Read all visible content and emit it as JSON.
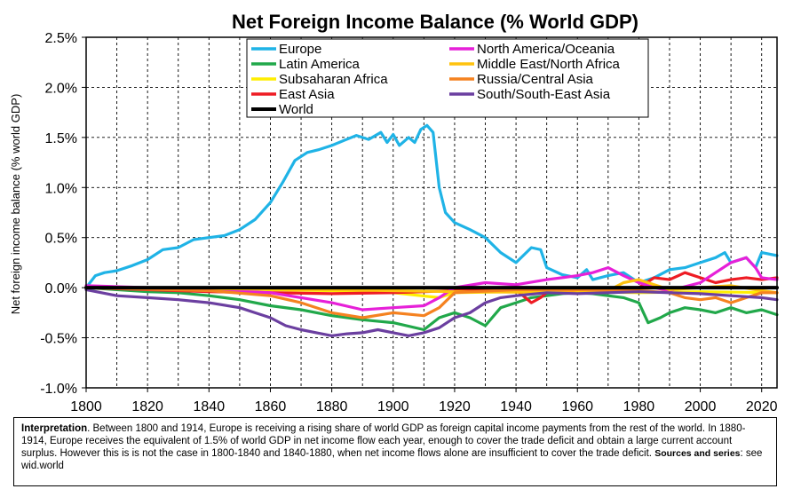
{
  "chart_data": {
    "type": "line",
    "title": "Net Foreign Income Balance (% World GDP)",
    "ylabel": "Net foreign income balance (% world GDP)",
    "xlabel": "",
    "xlim": [
      1800,
      2025
    ],
    "ylim": [
      -1.0,
      2.5
    ],
    "x_ticks": [
      "1800",
      "1820",
      "1840",
      "1860",
      "1880",
      "1900",
      "1920",
      "1940",
      "1960",
      "1980",
      "2000",
      "2020"
    ],
    "y_ticks": [
      "2.5%",
      "2.0%",
      "1.5%",
      "1.0%",
      "0.5%",
      "0.0%",
      "-0.5%",
      "-1.0%"
    ],
    "grid": true,
    "legend_position": "top-center",
    "series": [
      {
        "name": "Europe",
        "color": "#1fb3e6",
        "points": [
          [
            1800,
            0.0
          ],
          [
            1803,
            0.12
          ],
          [
            1806,
            0.15
          ],
          [
            1810,
            0.17
          ],
          [
            1815,
            0.22
          ],
          [
            1820,
            0.28
          ],
          [
            1825,
            0.38
          ],
          [
            1830,
            0.4
          ],
          [
            1835,
            0.48
          ],
          [
            1840,
            0.5
          ],
          [
            1845,
            0.52
          ],
          [
            1850,
            0.58
          ],
          [
            1855,
            0.68
          ],
          [
            1860,
            0.85
          ],
          [
            1864,
            1.05
          ],
          [
            1868,
            1.27
          ],
          [
            1872,
            1.35
          ],
          [
            1876,
            1.38
          ],
          [
            1880,
            1.42
          ],
          [
            1884,
            1.47
          ],
          [
            1888,
            1.52
          ],
          [
            1892,
            1.48
          ],
          [
            1896,
            1.55
          ],
          [
            1898,
            1.45
          ],
          [
            1900,
            1.53
          ],
          [
            1902,
            1.42
          ],
          [
            1905,
            1.5
          ],
          [
            1907,
            1.45
          ],
          [
            1909,
            1.58
          ],
          [
            1911,
            1.62
          ],
          [
            1913,
            1.55
          ],
          [
            1915,
            1.0
          ],
          [
            1917,
            0.75
          ],
          [
            1920,
            0.65
          ],
          [
            1925,
            0.58
          ],
          [
            1930,
            0.5
          ],
          [
            1935,
            0.35
          ],
          [
            1940,
            0.25
          ],
          [
            1945,
            0.4
          ],
          [
            1948,
            0.38
          ],
          [
            1950,
            0.2
          ],
          [
            1955,
            0.13
          ],
          [
            1960,
            0.1
          ],
          [
            1963,
            0.18
          ],
          [
            1965,
            0.08
          ],
          [
            1970,
            0.12
          ],
          [
            1975,
            0.15
          ],
          [
            1980,
            0.05
          ],
          [
            1985,
            0.1
          ],
          [
            1990,
            0.18
          ],
          [
            1995,
            0.2
          ],
          [
            2000,
            0.25
          ],
          [
            2005,
            0.3
          ],
          [
            2008,
            0.35
          ],
          [
            2010,
            0.25
          ],
          [
            2015,
            0.3
          ],
          [
            2018,
            0.2
          ],
          [
            2020,
            0.35
          ],
          [
            2025,
            0.32
          ]
        ]
      },
      {
        "name": "Latin America",
        "color": "#21a84a",
        "points": [
          [
            1800,
            0.0
          ],
          [
            1810,
            -0.02
          ],
          [
            1820,
            -0.04
          ],
          [
            1830,
            -0.05
          ],
          [
            1840,
            -0.08
          ],
          [
            1850,
            -0.12
          ],
          [
            1860,
            -0.18
          ],
          [
            1870,
            -0.22
          ],
          [
            1880,
            -0.28
          ],
          [
            1890,
            -0.32
          ],
          [
            1900,
            -0.35
          ],
          [
            1910,
            -0.42
          ],
          [
            1915,
            -0.3
          ],
          [
            1920,
            -0.25
          ],
          [
            1925,
            -0.3
          ],
          [
            1930,
            -0.38
          ],
          [
            1935,
            -0.2
          ],
          [
            1940,
            -0.15
          ],
          [
            1945,
            -0.1
          ],
          [
            1950,
            -0.08
          ],
          [
            1955,
            -0.06
          ],
          [
            1960,
            -0.05
          ],
          [
            1965,
            -0.06
          ],
          [
            1970,
            -0.08
          ],
          [
            1975,
            -0.1
          ],
          [
            1980,
            -0.15
          ],
          [
            1983,
            -0.35
          ],
          [
            1987,
            -0.3
          ],
          [
            1990,
            -0.25
          ],
          [
            1995,
            -0.2
          ],
          [
            2000,
            -0.22
          ],
          [
            2005,
            -0.25
          ],
          [
            2010,
            -0.2
          ],
          [
            2015,
            -0.25
          ],
          [
            2020,
            -0.22
          ],
          [
            2025,
            -0.27
          ]
        ]
      },
      {
        "name": "Subsaharan Africa",
        "color": "#ffee00",
        "points": [
          [
            1800,
            0.0
          ],
          [
            1840,
            -0.01
          ],
          [
            1880,
            -0.03
          ],
          [
            1900,
            -0.05
          ],
          [
            1915,
            -0.1
          ],
          [
            1920,
            -0.05
          ],
          [
            1940,
            -0.04
          ],
          [
            1960,
            -0.04
          ],
          [
            1980,
            -0.05
          ],
          [
            2000,
            -0.04
          ],
          [
            2025,
            -0.05
          ]
        ]
      },
      {
        "name": "East Asia",
        "color": "#ee1c24",
        "points": [
          [
            1800,
            0.0
          ],
          [
            1840,
            -0.04
          ],
          [
            1880,
            -0.06
          ],
          [
            1900,
            -0.05
          ],
          [
            1920,
            -0.03
          ],
          [
            1940,
            -0.02
          ],
          [
            1945,
            -0.15
          ],
          [
            1948,
            -0.1
          ],
          [
            1950,
            -0.05
          ],
          [
            1960,
            -0.02
          ],
          [
            1970,
            -0.01
          ],
          [
            1980,
            0.0
          ],
          [
            1985,
            0.1
          ],
          [
            1990,
            0.08
          ],
          [
            1995,
            0.15
          ],
          [
            2000,
            0.1
          ],
          [
            2005,
            0.05
          ],
          [
            2010,
            0.08
          ],
          [
            2015,
            0.1
          ],
          [
            2020,
            0.08
          ],
          [
            2025,
            0.1
          ]
        ]
      },
      {
        "name": "World",
        "color": "#000000",
        "points": [
          [
            1800,
            0.0
          ],
          [
            2025,
            0.0
          ]
        ]
      },
      {
        "name": "North America/Oceania",
        "color": "#e620d8",
        "points": [
          [
            1800,
            0.02
          ],
          [
            1820,
            0.0
          ],
          [
            1840,
            -0.02
          ],
          [
            1860,
            -0.05
          ],
          [
            1880,
            -0.15
          ],
          [
            1890,
            -0.22
          ],
          [
            1900,
            -0.2
          ],
          [
            1910,
            -0.18
          ],
          [
            1915,
            -0.1
          ],
          [
            1920,
            0.0
          ],
          [
            1930,
            0.05
          ],
          [
            1940,
            0.03
          ],
          [
            1950,
            0.08
          ],
          [
            1960,
            0.12
          ],
          [
            1965,
            0.15
          ],
          [
            1970,
            0.2
          ],
          [
            1975,
            0.12
          ],
          [
            1980,
            0.05
          ],
          [
            1985,
            0.0
          ],
          [
            1990,
            -0.03
          ],
          [
            2000,
            0.05
          ],
          [
            2005,
            0.15
          ],
          [
            2010,
            0.25
          ],
          [
            2015,
            0.3
          ],
          [
            2018,
            0.2
          ],
          [
            2020,
            0.1
          ],
          [
            2025,
            0.08
          ]
        ]
      },
      {
        "name": "Middle East/North Africa",
        "color": "#ffc20e",
        "points": [
          [
            1800,
            0.0
          ],
          [
            1880,
            -0.02
          ],
          [
            1920,
            -0.04
          ],
          [
            1960,
            -0.05
          ],
          [
            1970,
            -0.03
          ],
          [
            1975,
            0.05
          ],
          [
            1980,
            0.08
          ],
          [
            1985,
            0.03
          ],
          [
            1990,
            -0.02
          ],
          [
            2000,
            0.0
          ],
          [
            2010,
            0.02
          ],
          [
            2020,
            -0.03
          ],
          [
            2025,
            -0.05
          ]
        ]
      },
      {
        "name": "Russia/Central Asia",
        "color": "#f58220",
        "points": [
          [
            1800,
            0.0
          ],
          [
            1840,
            -0.03
          ],
          [
            1860,
            -0.08
          ],
          [
            1870,
            -0.15
          ],
          [
            1880,
            -0.25
          ],
          [
            1890,
            -0.3
          ],
          [
            1900,
            -0.25
          ],
          [
            1910,
            -0.28
          ],
          [
            1915,
            -0.2
          ],
          [
            1920,
            -0.05
          ],
          [
            1940,
            -0.02
          ],
          [
            1960,
            -0.02
          ],
          [
            1980,
            -0.03
          ],
          [
            1990,
            -0.05
          ],
          [
            1995,
            -0.1
          ],
          [
            2000,
            -0.12
          ],
          [
            2005,
            -0.1
          ],
          [
            2010,
            -0.15
          ],
          [
            2015,
            -0.1
          ],
          [
            2020,
            -0.05
          ],
          [
            2025,
            -0.05
          ]
        ]
      },
      {
        "name": "South/South-East Asia",
        "color": "#6b3fa0",
        "points": [
          [
            1800,
            -0.02
          ],
          [
            1810,
            -0.08
          ],
          [
            1820,
            -0.1
          ],
          [
            1830,
            -0.12
          ],
          [
            1840,
            -0.15
          ],
          [
            1850,
            -0.2
          ],
          [
            1855,
            -0.25
          ],
          [
            1860,
            -0.3
          ],
          [
            1865,
            -0.38
          ],
          [
            1870,
            -0.42
          ],
          [
            1875,
            -0.45
          ],
          [
            1880,
            -0.48
          ],
          [
            1885,
            -0.46
          ],
          [
            1890,
            -0.45
          ],
          [
            1895,
            -0.42
          ],
          [
            1900,
            -0.45
          ],
          [
            1905,
            -0.48
          ],
          [
            1910,
            -0.45
          ],
          [
            1915,
            -0.4
          ],
          [
            1920,
            -0.3
          ],
          [
            1925,
            -0.25
          ],
          [
            1930,
            -0.15
          ],
          [
            1935,
            -0.1
          ],
          [
            1940,
            -0.08
          ],
          [
            1950,
            -0.05
          ],
          [
            1960,
            -0.06
          ],
          [
            1970,
            -0.05
          ],
          [
            1980,
            -0.04
          ],
          [
            1990,
            -0.05
          ],
          [
            2000,
            -0.06
          ],
          [
            2010,
            -0.08
          ],
          [
            2020,
            -0.1
          ],
          [
            2025,
            -0.12
          ]
        ]
      }
    ]
  },
  "note": {
    "lead": "Interpretation",
    "text": ". Between 1800 and 1914, Europe is receiving a rising share of world GDP as foreign capital income payments from the rest of the world. In 1880-1914, Europe receives the equivalent of 1.5% of world GDP in net income flow each year, enough to cover the trade deficit and obtain a large current account surplus. However this is is not the case in 1800-1840 and 1840-1880, when net income flows alone are insufficient to cover the trade deficit. ",
    "sources": "Sources and series",
    "sources_tail": ": see wid.world"
  }
}
